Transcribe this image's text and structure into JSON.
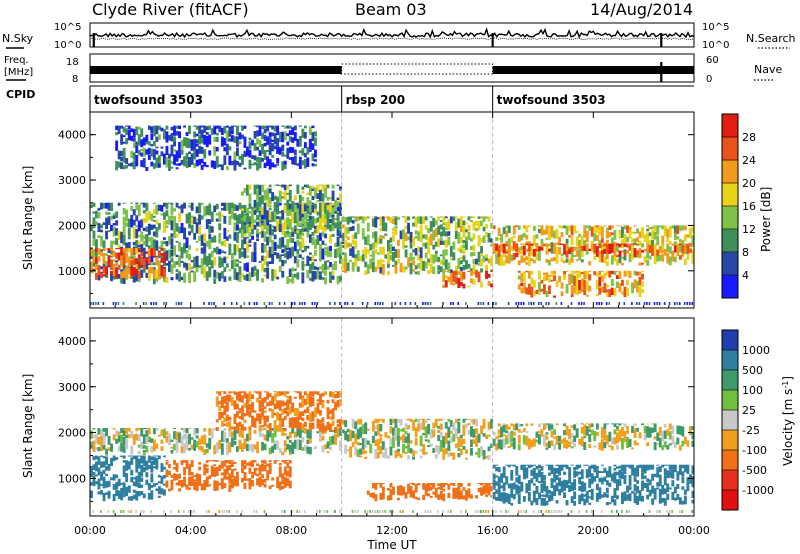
{
  "header": {
    "station": "Clyde River (fitACF)",
    "beam": "Beam 03",
    "date": "14/Aug/2014"
  },
  "noise_panel": {
    "left_label": "N.Sky",
    "right_label": "N.Search",
    "tick_top": "10^5",
    "tick_bottom": "10^0",
    "right_tick_top": "10^5",
    "right_tick_bottom": "10^0"
  },
  "freq_panel": {
    "left_label_line1": "Freq.",
    "left_label_line2": "[MHz]",
    "left_tick_top": "18",
    "left_tick_bottom": "8",
    "right_label": "Nave",
    "right_tick_top": "60",
    "right_tick_bottom": "0"
  },
  "cpid": {
    "label": "CPID",
    "segments": [
      {
        "name": "twofsound 3503",
        "start": 0,
        "end": 10
      },
      {
        "name": "rbsp 200",
        "start": 10,
        "end": 16
      },
      {
        "name": "twofsound 3503",
        "start": 16,
        "end": 24
      }
    ]
  },
  "power_panel": {
    "ylabel": "Slant Range [km]",
    "yticks": [
      "1000",
      "2000",
      "3000",
      "4000"
    ],
    "colorbar_label": "Power [dB]",
    "colorbar_ticks": [
      "4",
      "8",
      "12",
      "16",
      "20",
      "24",
      "28"
    ],
    "colorbar_colors": [
      "#1a1aff",
      "#2846a8",
      "#3f8f5c",
      "#7fc24a",
      "#e8d21a",
      "#f09a1e",
      "#e8531c",
      "#e01e12"
    ]
  },
  "velocity_panel": {
    "ylabel": "Slant Range [km]",
    "yticks": [
      "1000",
      "2000",
      "3000",
      "4000"
    ],
    "colorbar_label": "Velocity [m s^-1]",
    "colorbar_ticks": [
      "1000",
      "500",
      "100",
      "25",
      "-25",
      "-100",
      "-500",
      "-1000"
    ],
    "colorbar_colors": [
      "#1f3fb0",
      "#2f7fa0",
      "#3e9a6a",
      "#70c040",
      "#c8c8c8",
      "#f0a020",
      "#f07018",
      "#e83020",
      "#e01010"
    ]
  },
  "xaxis": {
    "label": "Time UT",
    "ticks": [
      "00:00",
      "04:00",
      "08:00",
      "12:00",
      "16:00",
      "20:00",
      "00:00"
    ]
  },
  "chart_data": [
    {
      "type": "line",
      "title": "N.Sky / N.Search",
      "x_unit": "hours UT",
      "xlim": [
        0,
        24
      ],
      "yscale": "log",
      "ylim": [
        1,
        100000
      ],
      "series": [
        {
          "name": "N.Sky",
          "values": "approximately constant near upper range with spikes"
        }
      ],
      "spikes_at_hours": [
        0.15,
        16.0,
        22.7
      ]
    },
    {
      "type": "line",
      "title": "Freq. / Nave",
      "x_unit": "hours UT",
      "xlim": [
        0,
        24
      ],
      "freq_ylim_mhz": [
        8,
        18
      ],
      "nave_ylim": [
        0,
        60
      ],
      "solid_band_hours": [
        [
          0,
          10
        ],
        [
          16,
          24
        ]
      ],
      "dotted_band_hours": [
        [
          10,
          16
        ]
      ]
    },
    {
      "type": "heatmap",
      "title": "Power",
      "xlabel": "Time UT",
      "ylabel": "Slant Range [km]",
      "xlim": [
        0,
        24
      ],
      "ylim": [
        180,
        4500
      ],
      "zlabel": "Power [dB]",
      "zlim": [
        0,
        32
      ],
      "colorbar_ticks": [
        4,
        8,
        12,
        16,
        20,
        24,
        28
      ],
      "regions": [
        {
          "hours": [
            0,
            10
          ],
          "range_km": [
            700,
            2500
          ],
          "power_db": 10
        },
        {
          "hours": [
            0,
            3
          ],
          "range_km": [
            800,
            1500
          ],
          "power_db": 26
        },
        {
          "hours": [
            6,
            10
          ],
          "range_km": [
            1800,
            2900
          ],
          "power_db": 12
        },
        {
          "hours": [
            10,
            16
          ],
          "range_km": [
            900,
            2200
          ],
          "power_db": 14
        },
        {
          "hours": [
            14,
            16
          ],
          "range_km": [
            600,
            1000
          ],
          "power_db": 26
        },
        {
          "hours": [
            16,
            24
          ],
          "range_km": [
            1100,
            2000
          ],
          "power_db": 18
        },
        {
          "hours": [
            16,
            24
          ],
          "range_km": [
            1300,
            1600
          ],
          "power_db": 26
        },
        {
          "hours": [
            17,
            22
          ],
          "range_km": [
            400,
            1000
          ],
          "power_db": 22
        },
        {
          "hours": [
            1,
            9
          ],
          "range_km": [
            3200,
            4200
          ],
          "power_db": 6
        }
      ]
    },
    {
      "type": "heatmap",
      "title": "Velocity",
      "xlabel": "Time UT",
      "ylabel": "Slant Range [km]",
      "xlim": [
        0,
        24
      ],
      "ylim": [
        180,
        4500
      ],
      "zlabel": "Velocity [m s^-1]",
      "colorbar_ticks": [
        1000,
        500,
        100,
        25,
        -25,
        -100,
        -500,
        -1000
      ],
      "regions": [
        {
          "hours": [
            0,
            10
          ],
          "range_km": [
            1500,
            2100
          ],
          "velocity": 0
        },
        {
          "hours": [
            0,
            3
          ],
          "range_km": [
            500,
            1500
          ],
          "velocity": 200
        },
        {
          "hours": [
            3,
            8
          ],
          "range_km": [
            700,
            1400
          ],
          "velocity": -200
        },
        {
          "hours": [
            5,
            10
          ],
          "range_km": [
            2000,
            2900
          ],
          "velocity": -150
        },
        {
          "hours": [
            10,
            16
          ],
          "range_km": [
            1400,
            2300
          ],
          "velocity": 0
        },
        {
          "hours": [
            11,
            16
          ],
          "range_km": [
            500,
            900
          ],
          "velocity": -300
        },
        {
          "hours": [
            16,
            24
          ],
          "range_km": [
            1600,
            2200
          ],
          "velocity": 0
        },
        {
          "hours": [
            16,
            24
          ],
          "range_km": [
            400,
            1300
          ],
          "velocity": 300
        }
      ]
    }
  ]
}
